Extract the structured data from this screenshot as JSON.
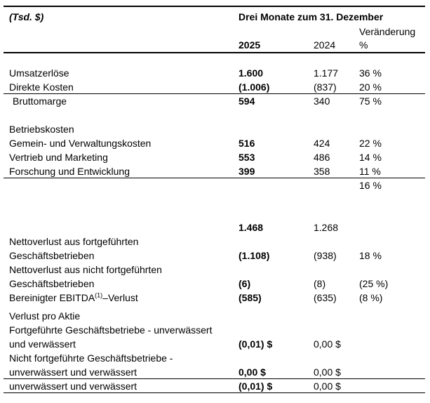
{
  "header": {
    "unit": "(Tsd. $)",
    "period": "Drei Monate zum 31. Dezember",
    "change": "Veränderung",
    "year_current": "2025",
    "year_prior": "2024",
    "percent": "%"
  },
  "rows": [
    {
      "label": "Umsatzerlöse",
      "v2025": "1.600",
      "v2024": "1.177",
      "pct": "36 %"
    },
    {
      "label": "Direkte Kosten",
      "v2025": "(1.006)",
      "v2024": "(837)",
      "pct": "20 %",
      "border_bottom": true
    },
    {
      "label": "Bruttomarge",
      "indent": true,
      "v2025": "594",
      "v2024": "340",
      "pct": "75 %"
    },
    {
      "spacer": true,
      "h": 20
    },
    {
      "label": "Betriebskosten"
    },
    {
      "label": "Gemein- und Verwaltungskosten",
      "v2025": "516",
      "v2024": "424",
      "pct": "22 %"
    },
    {
      "label": "Vertrieb und Marketing",
      "v2025": "553",
      "v2024": "486",
      "pct": "14 %"
    },
    {
      "label": "Forschung und Entwicklung",
      "v2025": "399",
      "v2024": "358",
      "pct": "11 %",
      "border_bottom": true
    },
    {
      "pct": "16 %"
    },
    {
      "spacer": true,
      "h": 40
    },
    {
      "v2025": "1.468",
      "v2024": "1.268"
    },
    {
      "label": "Nettoverlust aus fortgeführten"
    },
    {
      "label": "Geschäftsbetrieben",
      "v2025": "(1.108)",
      "v2024": "(938)",
      "pct": "18 %"
    },
    {
      "label": "Nettoverlust aus nicht fortgeführten"
    },
    {
      "label": "Geschäftsbetrieben",
      "v2025": "(6)",
      "v2024": "(8)",
      "pct": "(25 %)"
    },
    {
      "label": "Bereinigter EBITDA",
      "label_sup": "(1)",
      "label_post": "–Verlust",
      "v2025": "(585)",
      "v2024": "(635)",
      "pct": "(8 %)"
    },
    {
      "spacer": true,
      "h": 6
    },
    {
      "label": "Verlust pro Aktie"
    },
    {
      "label": "Fortgeführte Geschäftsbetriebe - unverwässert"
    },
    {
      "label": "und verwässert",
      "v2025": "(0,01) $",
      "v2024": "0,00 $"
    },
    {
      "label": "Nicht fortgeführte Geschäftsbetriebe -"
    },
    {
      "label": "unverwässert und verwässert",
      "v2025": "0,00 $",
      "v2024": "0,00 $",
      "border_bottom": true
    },
    {
      "label": "unverwässert und verwässert",
      "v2025": "(0,01) $",
      "v2024": "0,00 $",
      "border_bottom": true
    }
  ]
}
